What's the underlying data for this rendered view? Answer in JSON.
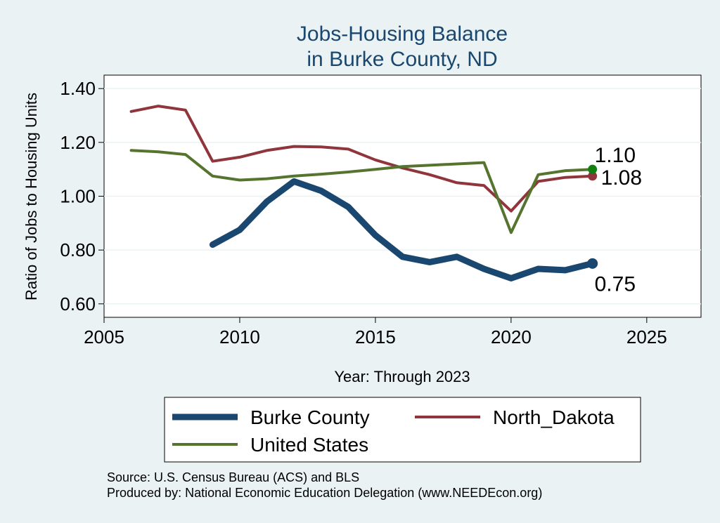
{
  "chart_data": {
    "type": "line",
    "title": [
      "Jobs-Housing Balance",
      "in Burke County, ND"
    ],
    "xlabel": "Year: Through 2023",
    "ylabel": "Ratio of Jobs to Housing Units",
    "xlim": [
      2005,
      2027
    ],
    "ylim": [
      0.55,
      1.45
    ],
    "xticks": [
      2005,
      2010,
      2015,
      2020,
      2025
    ],
    "yticks": [
      0.6,
      0.8,
      1.0,
      1.2,
      1.4
    ],
    "ytick_labels": [
      "0.60",
      "0.80",
      "1.00",
      "1.20",
      "1.40"
    ],
    "grid": true,
    "legend_position": "bottom",
    "series": [
      {
        "name": "Burke County",
        "color": "#1a476f",
        "x": [
          2009,
          2010,
          2011,
          2012,
          2013,
          2014,
          2015,
          2016,
          2017,
          2018,
          2019,
          2020,
          2021,
          2022,
          2023
        ],
        "y": [
          0.82,
          0.875,
          0.98,
          1.055,
          1.02,
          0.96,
          0.855,
          0.775,
          0.755,
          0.775,
          0.73,
          0.695,
          0.73,
          0.725,
          0.75
        ],
        "end_label": "0.75",
        "end_label_position": "below"
      },
      {
        "name": "North_Dakota",
        "color": "#90353b",
        "x": [
          2006,
          2007,
          2008,
          2009,
          2010,
          2011,
          2012,
          2013,
          2014,
          2015,
          2016,
          2017,
          2018,
          2019,
          2020,
          2021,
          2022,
          2023
        ],
        "y": [
          1.315,
          1.335,
          1.32,
          1.13,
          1.145,
          1.17,
          1.185,
          1.183,
          1.175,
          1.135,
          1.105,
          1.08,
          1.05,
          1.04,
          0.945,
          1.055,
          1.07,
          1.075
        ],
        "end_label": "1.08",
        "end_label_position": "right"
      },
      {
        "name": "United States",
        "color": "#55752f",
        "end_color": "#108010",
        "x": [
          2006,
          2007,
          2008,
          2009,
          2010,
          2011,
          2012,
          2013,
          2014,
          2015,
          2016,
          2017,
          2018,
          2019,
          2020,
          2021,
          2022,
          2023
        ],
        "y": [
          1.17,
          1.165,
          1.155,
          1.075,
          1.06,
          1.065,
          1.075,
          1.082,
          1.09,
          1.1,
          1.11,
          1.115,
          1.12,
          1.125,
          0.865,
          1.08,
          1.095,
          1.1
        ],
        "end_label": "1.10",
        "end_label_position": "above"
      }
    ],
    "notes": [
      "Source: U.S. Census Bureau (ACS) and BLS",
      "Produced by: National Economic Education Delegation (www.NEEDEcon.org)"
    ]
  }
}
